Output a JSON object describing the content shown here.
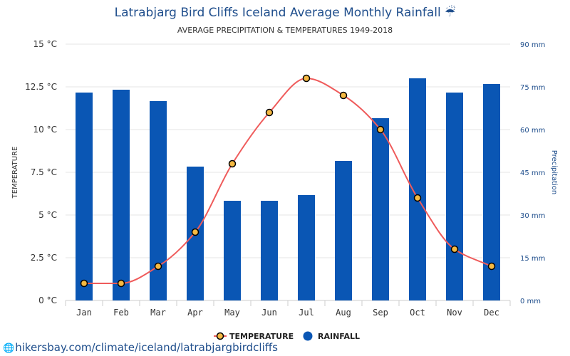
{
  "chart_data": {
    "type": "bar",
    "title": "Latrabjarg Bird Cliffs Iceland Average Monthly Rainfall ☔",
    "subtitle": "AVERAGE PRECIPITATION & TEMPERATURES 1949-2018",
    "ylabel_left": "TEMPERATURE",
    "ylabel_right": "Precipitation",
    "categories": [
      "Jan",
      "Feb",
      "Mar",
      "Apr",
      "May",
      "Jun",
      "Jul",
      "Aug",
      "Sep",
      "Oct",
      "Nov",
      "Dec"
    ],
    "y_left_ticks": [
      "0 °C",
      "2.5 °C",
      "5 °C",
      "7.5 °C",
      "10 °C",
      "12.5 °C",
      "15 °C"
    ],
    "y_right_ticks": [
      "0 mm",
      "15 mm",
      "30 mm",
      "45 mm",
      "60 mm",
      "75 mm",
      "90 mm"
    ],
    "ylim_left": [
      0,
      15
    ],
    "ylim_right": [
      0,
      90
    ],
    "grid": true,
    "legend_position": "bottom-center",
    "series": [
      {
        "name": "TEMPERATURE",
        "type": "line",
        "axis": "left",
        "unit": "°C",
        "values": [
          1,
          1,
          2,
          4,
          8,
          11,
          13,
          12,
          10,
          6,
          3,
          2
        ]
      },
      {
        "name": "RAINFALL",
        "type": "bar",
        "axis": "right",
        "unit": "mm",
        "values": [
          73,
          74,
          70,
          47,
          35,
          35,
          37,
          49,
          64,
          78,
          73,
          76
        ]
      }
    ],
    "colors": {
      "rainfall_bar": "#0a56b4",
      "temperature_line": "#ef5b5b",
      "temperature_marker": "#f5b942",
      "title": "#1f4e8c",
      "grid": "#e6e6e6"
    }
  },
  "source": {
    "icon": "globe-icon",
    "text": "hikersbay.com/climate/iceland/latrabjargbirdcliffs"
  }
}
